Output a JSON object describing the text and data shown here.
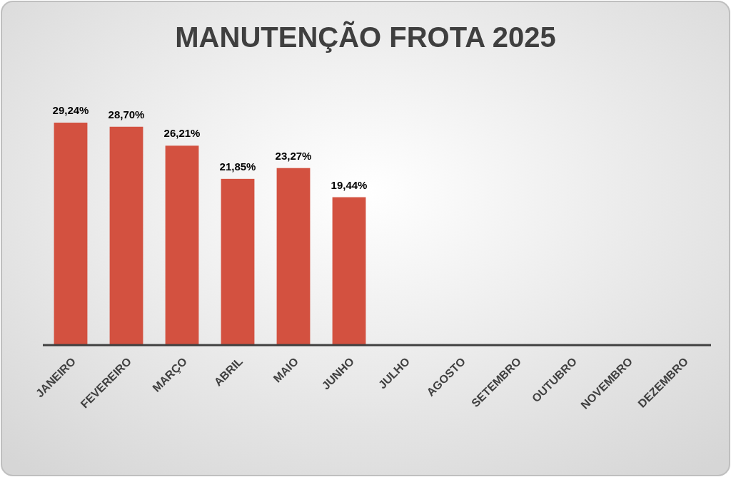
{
  "chart_data": {
    "type": "bar",
    "title": "MANUTENÇÃO FROTA 2025",
    "categories": [
      "JANEIRO",
      "FEVEREIRO",
      "MARÇO",
      "ABRIL",
      "MAIO",
      "JUNHO",
      "JULHO",
      "AGOSTO",
      "SETEMBRO",
      "OUTUBRO",
      "NOVEMBRO",
      "DEZEMBRO"
    ],
    "values": [
      29.24,
      28.7,
      26.21,
      21.85,
      23.27,
      19.44,
      null,
      null,
      null,
      null,
      null,
      null
    ],
    "value_labels": [
      "29,24%",
      "28,70%",
      "26,21%",
      "21,85%",
      "23,27%",
      "19,44%",
      null,
      null,
      null,
      null,
      null,
      null
    ],
    "color": "#d35140"
  }
}
